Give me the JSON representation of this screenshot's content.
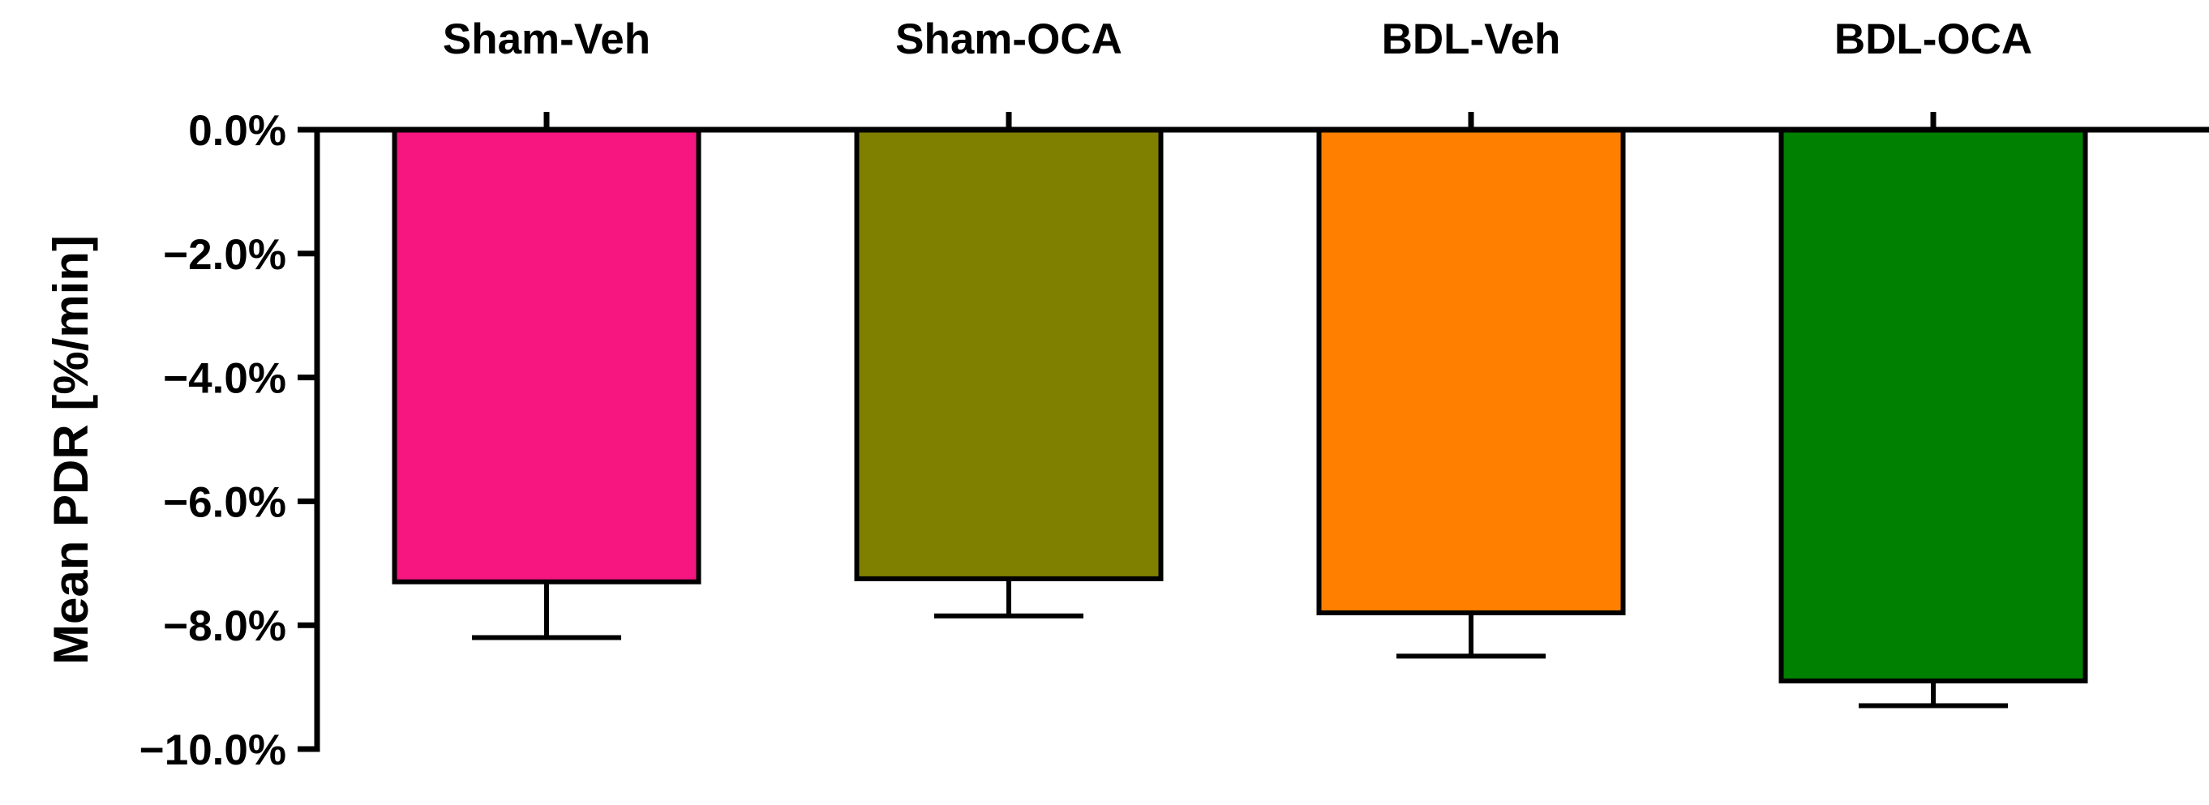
{
  "chart_data": {
    "type": "bar",
    "title": "",
    "xlabel": "",
    "ylabel": "Mean  PDR [%/min]",
    "categories": [
      "Sham-Veh",
      "Sham-OCA",
      "BDL-Veh",
      "BDL-OCA"
    ],
    "values": [
      -7.3,
      -7.25,
      -7.8,
      -8.9
    ],
    "errors": [
      0.9,
      0.6,
      0.7,
      0.4
    ],
    "colors": [
      "#F7157F",
      "#7F7F00",
      "#FF8000",
      "#008000"
    ],
    "ylim": [
      -10,
      0
    ],
    "yticks": [
      0,
      -2,
      -4,
      -6,
      -8,
      -10
    ],
    "ytick_labels": [
      "0.0%",
      "−2.0%",
      "−4.0%",
      "−6.0%",
      "−8.0%",
      "−10.0%"
    ],
    "grid": false,
    "legend": "none",
    "x_axis_position": "top"
  }
}
